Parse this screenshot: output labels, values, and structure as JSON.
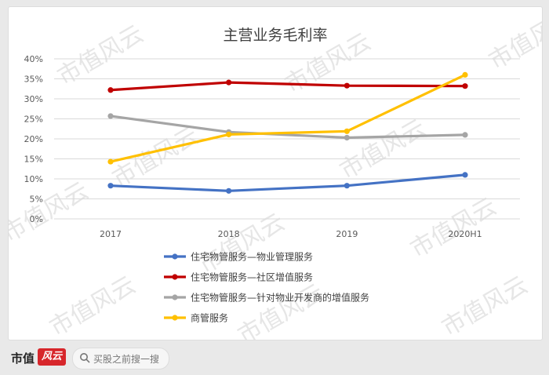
{
  "chart_data": {
    "type": "line",
    "title": "主营业务毛利率",
    "categories": [
      "2017",
      "2018",
      "2019",
      "2020H1"
    ],
    "y_ticks": [
      "0%",
      "5%",
      "10%",
      "15%",
      "20%",
      "25%",
      "30%",
      "35%",
      "40%"
    ],
    "ylim": [
      0,
      40
    ],
    "unit": "%",
    "grid": true,
    "legend_position": "bottom",
    "series": [
      {
        "name": "住宅物管服务—物业管理服务",
        "color": "#4472c4",
        "values": [
          8.3,
          7.0,
          8.3,
          11.0
        ]
      },
      {
        "name": "住宅物管服务—社区增值服务",
        "color": "#c00000",
        "values": [
          32.2,
          34.1,
          33.3,
          33.2
        ]
      },
      {
        "name": "住宅物管服务—针对物业开发商的增值服务",
        "color": "#a5a5a5",
        "values": [
          25.7,
          21.7,
          20.3,
          21.0
        ]
      },
      {
        "name": "商管服务",
        "color": "#ffc000",
        "values": [
          14.3,
          21.1,
          21.9,
          36.0
        ]
      }
    ]
  },
  "footer": {
    "brand": "市值",
    "brand_logo": "风云",
    "search_placeholder": "买股之前搜一搜",
    "search_icon": "search-icon"
  },
  "watermark": "市值风云"
}
